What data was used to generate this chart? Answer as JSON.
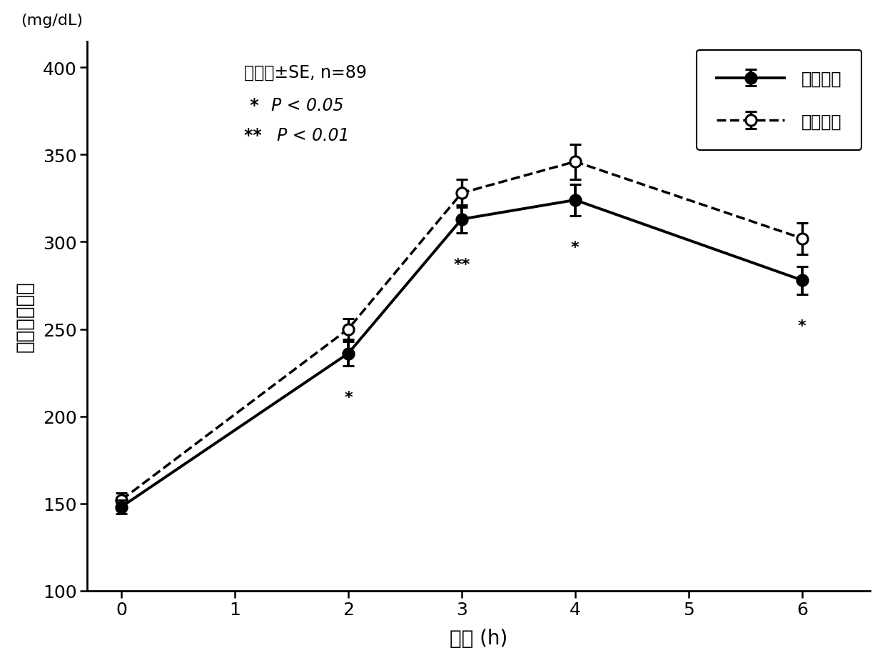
{
  "x": [
    0,
    2,
    3,
    4,
    6
  ],
  "test_y": [
    148,
    236,
    313,
    324,
    278
  ],
  "test_yerr": [
    4,
    7,
    8,
    9,
    8
  ],
  "control_y": [
    152,
    250,
    328,
    346,
    302
  ],
  "control_yerr": [
    4,
    6,
    8,
    10,
    9
  ],
  "xlabel": "时间 (h)",
  "ylabel": "血中中性脂肪",
  "ylabel_top": "(mg/dL)",
  "xlim": [
    -0.3,
    6.6
  ],
  "ylim": [
    100,
    415
  ],
  "xticks": [
    0,
    1,
    2,
    3,
    4,
    5,
    6
  ],
  "yticks": [
    100,
    150,
    200,
    250,
    300,
    350,
    400
  ],
  "legend_test": "被检饮料",
  "legend_control": "对照饮料",
  "line_color": "#000000",
  "bg_color": "#ffffff",
  "figsize": [
    12.4,
    9.29
  ],
  "dpi": 100,
  "sig_data": [
    {
      "x": 2,
      "y_test": 236,
      "yerr": 7,
      "label": "*"
    },
    {
      "x": 3,
      "y_test": 313,
      "yerr": 8,
      "label": "**"
    },
    {
      "x": 4,
      "y_test": 324,
      "yerr": 9,
      "label": "*"
    },
    {
      "x": 6,
      "y_test": 278,
      "yerr": 8,
      "label": "*"
    }
  ],
  "annot_line1": "平均值±SE, n=89",
  "annot_line2_star": " * ",
  "annot_line2_text": "P < 0.05",
  "annot_line3_star": "** ",
  "annot_line3_text": "P < 0.01"
}
